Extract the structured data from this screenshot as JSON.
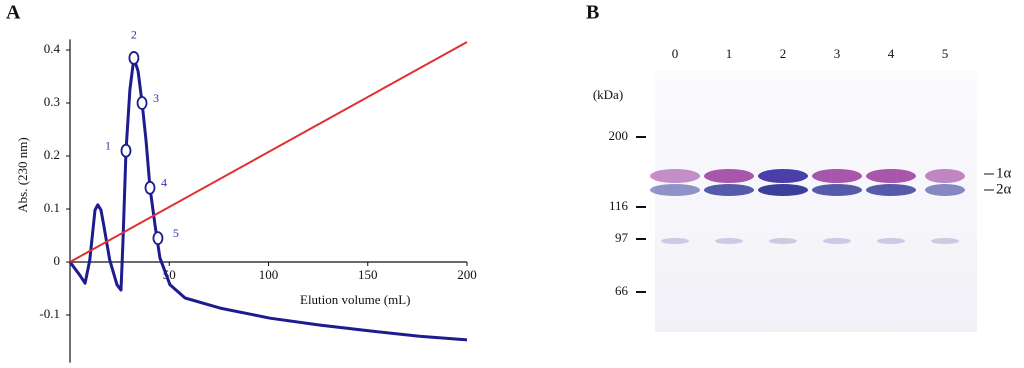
{
  "chart_data": {
    "type": "line",
    "panel": "A",
    "ylabel": "Abs. (230 nm)",
    "xlabel": "Elution volume (mL)",
    "xlim": [
      0,
      200
    ],
    "ylim": [
      -0.19,
      0.42
    ],
    "xticks": [
      50,
      100,
      150,
      200
    ],
    "yticks": [
      -0.1,
      0,
      0.1,
      0.2,
      0.3,
      0.4
    ],
    "series": [
      {
        "color": "#1c1c8f",
        "x": [
          0,
          5,
          7.6,
          10,
          12.6,
          14,
          15.6,
          17,
          20,
          23.7,
          25.7,
          26.7,
          28.2,
          30.2,
          32.2,
          34.3,
          36.3,
          38.3,
          40.3,
          42.8,
          45.3,
          50.4,
          58,
          75.6,
          100.8,
          126,
          151,
          176,
          200
        ],
        "values": [
          0,
          -0.025,
          -0.04,
          0.004,
          0.098,
          0.108,
          0.098,
          0.07,
          0.004,
          -0.043,
          -0.053,
          0.04,
          0.21,
          0.325,
          0.385,
          0.36,
          0.3,
          0.23,
          0.14,
          0.07,
          0.008,
          -0.043,
          -0.068,
          -0.087,
          -0.106,
          -0.119,
          -0.13,
          -0.14,
          -0.147
        ]
      },
      {
        "color": "#e03030",
        "x": [
          0,
          200
        ],
        "values": [
          0,
          0.415
        ]
      }
    ],
    "fractions": [
      {
        "label": "1",
        "x": 28.2,
        "y": 0.21
      },
      {
        "label": "2",
        "x": 32.2,
        "y": 0.385
      },
      {
        "label": "3",
        "x": 36.3,
        "y": 0.3
      },
      {
        "label": "4",
        "x": 40.3,
        "y": 0.14
      },
      {
        "label": "5",
        "x": 44.3,
        "y": 0.045
      }
    ]
  },
  "gel": {
    "panel": "B",
    "lanes": [
      "0",
      "1",
      "2",
      "3",
      "4",
      "5"
    ],
    "unit": "(kDa)",
    "markers": [
      "200",
      "116",
      "97",
      "66"
    ],
    "bands": [
      "1α",
      "2α"
    ]
  }
}
